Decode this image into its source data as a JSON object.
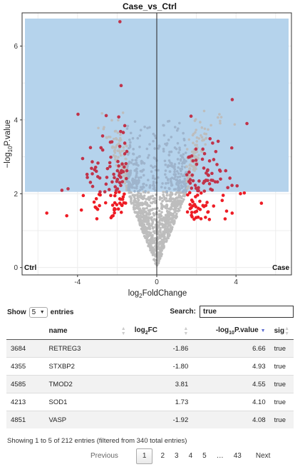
{
  "chart_data": {
    "type": "scatter",
    "title": "Case_vs_Ctrl",
    "xlabel": "log2FoldChange",
    "ylabel": "-log10P.value",
    "xlim": [
      -6.8,
      6.8
    ],
    "ylim": [
      -0.2,
      6.9
    ],
    "xticks": [
      -4,
      0,
      4
    ],
    "yticks": [
      0,
      2,
      4,
      6
    ],
    "grid": true,
    "significance_threshold_y": 2.05,
    "corner_labels": {
      "left": "Ctrl",
      "right": "Case"
    },
    "colors": {
      "panel": "#ebebeb",
      "significance_region": "#b5d3ec",
      "nonsignificant": "#bdbdbd",
      "nonsignificant_in_region": "#9eb4cc",
      "significant_upper": "#c0334a",
      "significant_lower": "#ee1c25"
    },
    "points_generated": true,
    "seed": 42,
    "n_nonsignificant": 1300,
    "n_significant": 212,
    "labeled_points": [
      {
        "name": "RETREG3",
        "x": -1.86,
        "y": 6.66
      },
      {
        "name": "STXBP2",
        "x": -1.8,
        "y": 4.93
      },
      {
        "name": "TMOD2",
        "x": 3.81,
        "y": 4.55
      },
      {
        "name": "SOD1",
        "x": 1.73,
        "y": 4.1
      },
      {
        "name": "VASP",
        "x": -1.92,
        "y": 4.08
      }
    ]
  },
  "controls": {
    "show_label": "Show",
    "length_value": "5",
    "entries_label": "entries",
    "search_label": "Search:",
    "search_value": "true"
  },
  "table": {
    "columns": [
      "",
      "name",
      "log2FC",
      "-log10P.value",
      "sig"
    ],
    "rows": [
      [
        "3684",
        "RETREG3",
        "-1.86",
        "6.66",
        "true"
      ],
      [
        "4355",
        "STXBP2",
        "-1.80",
        "4.93",
        "true"
      ],
      [
        "4585",
        "TMOD2",
        "3.81",
        "4.55",
        "true"
      ],
      [
        "4213",
        "SOD1",
        "1.73",
        "4.10",
        "true"
      ],
      [
        "4851",
        "VASP",
        "-1.92",
        "4.08",
        "true"
      ]
    ]
  },
  "info": "Showing 1 to 5 of 212 entries (filtered from 340 total entries)",
  "pagination": {
    "previous": "Previous",
    "pages": [
      "1",
      "2",
      "3",
      "4",
      "5",
      "…",
      "43"
    ],
    "current": "1",
    "next": "Next"
  }
}
